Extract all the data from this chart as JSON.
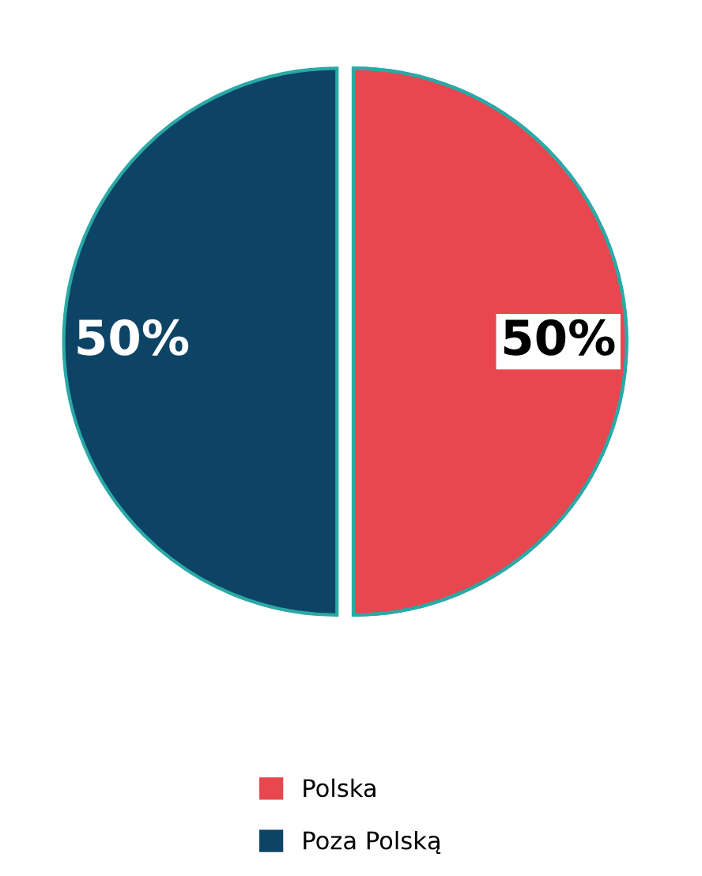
{
  "chart_data": {
    "type": "pie",
    "categories": [
      "Polska",
      "Poza Polską"
    ],
    "values": [
      50,
      50
    ],
    "colors": [
      "#e8474f",
      "#0d4466"
    ],
    "value_labels": [
      "50%",
      "50%"
    ],
    "legend": "bottom"
  }
}
